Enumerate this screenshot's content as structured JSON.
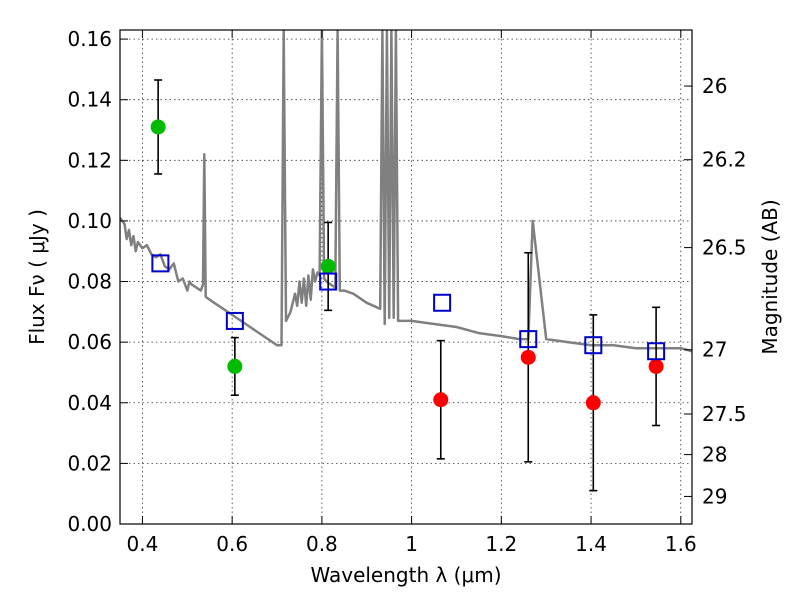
{
  "chart_data": {
    "type": "scatter",
    "title": "",
    "xlabel": "Wavelength  λ (μm)",
    "ylabel": "Flux  Fν  ( μJy )",
    "y2label": "Magnitude (AB)",
    "xlim": [
      0.35,
      1.625
    ],
    "ylim": [
      0.0,
      0.163
    ],
    "grid": true,
    "x_ticks": [
      0.4,
      0.6,
      0.8,
      1.0,
      1.2,
      1.4,
      1.6
    ],
    "x_tick_labels": [
      "0.4",
      "0.6",
      "0.8",
      "1",
      "1.2",
      "1.4",
      "1.6"
    ],
    "y_ticks": [
      0.0,
      0.02,
      0.04,
      0.06,
      0.08,
      0.1,
      0.12,
      0.14,
      0.16
    ],
    "y_tick_labels": [
      "0.00",
      "0.02",
      "0.04",
      "0.06",
      "0.08",
      "0.10",
      "0.12",
      "0.14",
      "0.16"
    ],
    "y2_ticks": [
      {
        "label": "26",
        "flux": 0.1445
      },
      {
        "label": "26.2",
        "flux": 0.1202
      },
      {
        "label": "26.5",
        "flux": 0.0912
      },
      {
        "label": "27",
        "flux": 0.0575
      },
      {
        "label": "27.5",
        "flux": 0.0363
      },
      {
        "label": "28",
        "flux": 0.0229
      },
      {
        "label": "29",
        "flux": 0.0091
      }
    ],
    "colors": {
      "spectrum": "#808080",
      "green_points": "#00bb00",
      "red_points": "#ff0000",
      "model_squares": "#0000cc",
      "errorbars": "#000000"
    },
    "series": [
      {
        "kind": "line",
        "points": [
          [
            0.35,
            0.101
          ],
          [
            0.36,
            0.099
          ],
          [
            0.365,
            0.094
          ],
          [
            0.37,
            0.097
          ],
          [
            0.375,
            0.092
          ],
          [
            0.38,
            0.095
          ],
          [
            0.385,
            0.09
          ],
          [
            0.39,
            0.093
          ],
          [
            0.4,
            0.091
          ],
          [
            0.41,
            0.092
          ],
          [
            0.42,
            0.089
          ],
          [
            0.43,
            0.088
          ],
          [
            0.44,
            0.089
          ],
          [
            0.45,
            0.085
          ],
          [
            0.46,
            0.084
          ],
          [
            0.47,
            0.086
          ],
          [
            0.48,
            0.08
          ],
          [
            0.49,
            0.081
          ],
          [
            0.5,
            0.077
          ],
          [
            0.505,
            0.08
          ],
          [
            0.51,
            0.079
          ],
          [
            0.52,
            0.078
          ],
          [
            0.53,
            0.077
          ],
          [
            0.535,
            0.079
          ],
          [
            0.538,
            0.122
          ],
          [
            0.541,
            0.075
          ],
          [
            0.55,
            0.074
          ],
          [
            0.56,
            0.073
          ],
          [
            0.57,
            0.072
          ],
          [
            0.58,
            0.071
          ],
          [
            0.6,
            0.069
          ],
          [
            0.62,
            0.067
          ],
          [
            0.64,
            0.065
          ],
          [
            0.66,
            0.063
          ],
          [
            0.68,
            0.061
          ],
          [
            0.7,
            0.059
          ],
          [
            0.71,
            0.059
          ],
          [
            0.715,
            0.163
          ],
          [
            0.72,
            0.067
          ],
          [
            0.73,
            0.07
          ],
          [
            0.74,
            0.076
          ],
          [
            0.745,
            0.072
          ],
          [
            0.75,
            0.08
          ],
          [
            0.755,
            0.073
          ],
          [
            0.76,
            0.081
          ],
          [
            0.765,
            0.072
          ],
          [
            0.77,
            0.082
          ],
          [
            0.775,
            0.074
          ],
          [
            0.78,
            0.084
          ],
          [
            0.785,
            0.08
          ],
          [
            0.79,
            0.083
          ],
          [
            0.795,
            0.082
          ],
          [
            0.8,
            0.163
          ],
          [
            0.805,
            0.081
          ],
          [
            0.81,
            0.08
          ],
          [
            0.82,
            0.079
          ],
          [
            0.83,
            0.078
          ],
          [
            0.835,
            0.163
          ],
          [
            0.84,
            0.077
          ],
          [
            0.85,
            0.077
          ],
          [
            0.87,
            0.076
          ],
          [
            0.9,
            0.073
          ],
          [
            0.93,
            0.071
          ],
          [
            0.935,
            0.163
          ],
          [
            0.94,
            0.066
          ],
          [
            0.945,
            0.163
          ],
          [
            0.95,
            0.068
          ],
          [
            0.955,
            0.163
          ],
          [
            0.96,
            0.068
          ],
          [
            0.965,
            0.163
          ],
          [
            0.97,
            0.067
          ],
          [
            1.0,
            0.067
          ],
          [
            1.05,
            0.066
          ],
          [
            1.1,
            0.065
          ],
          [
            1.15,
            0.063
          ],
          [
            1.2,
            0.062
          ],
          [
            1.24,
            0.061
          ],
          [
            1.26,
            0.061
          ],
          [
            1.27,
            0.1
          ],
          [
            1.3,
            0.061
          ],
          [
            1.35,
            0.06
          ],
          [
            1.4,
            0.059
          ],
          [
            1.45,
            0.059
          ],
          [
            1.5,
            0.058
          ],
          [
            1.55,
            0.058
          ],
          [
            1.6,
            0.058
          ],
          [
            1.625,
            0.057
          ]
        ]
      },
      {
        "kind": "scatter-errorbar",
        "points": [
          {
            "x": 0.435,
            "y": 0.131,
            "err": 0.0155
          },
          {
            "x": 0.606,
            "y": 0.052,
            "err": 0.0095
          },
          {
            "x": 0.814,
            "y": 0.085,
            "err": 0.0145
          }
        ]
      },
      {
        "kind": "scatter-errorbar",
        "points": [
          {
            "x": 1.065,
            "y": 0.041,
            "err": 0.0195
          },
          {
            "x": 1.26,
            "y": 0.055,
            "err": 0.0345
          },
          {
            "x": 1.405,
            "y": 0.04,
            "err": 0.029
          },
          {
            "x": 1.545,
            "y": 0.052,
            "err": 0.0195
          }
        ]
      },
      {
        "kind": "square-marker",
        "points": [
          {
            "x": 0.44,
            "y": 0.086
          },
          {
            "x": 0.606,
            "y": 0.067
          },
          {
            "x": 0.814,
            "y": 0.08
          },
          {
            "x": 1.068,
            "y": 0.073
          },
          {
            "x": 1.26,
            "y": 0.061
          },
          {
            "x": 1.405,
            "y": 0.059
          },
          {
            "x": 1.545,
            "y": 0.057
          }
        ]
      }
    ]
  }
}
